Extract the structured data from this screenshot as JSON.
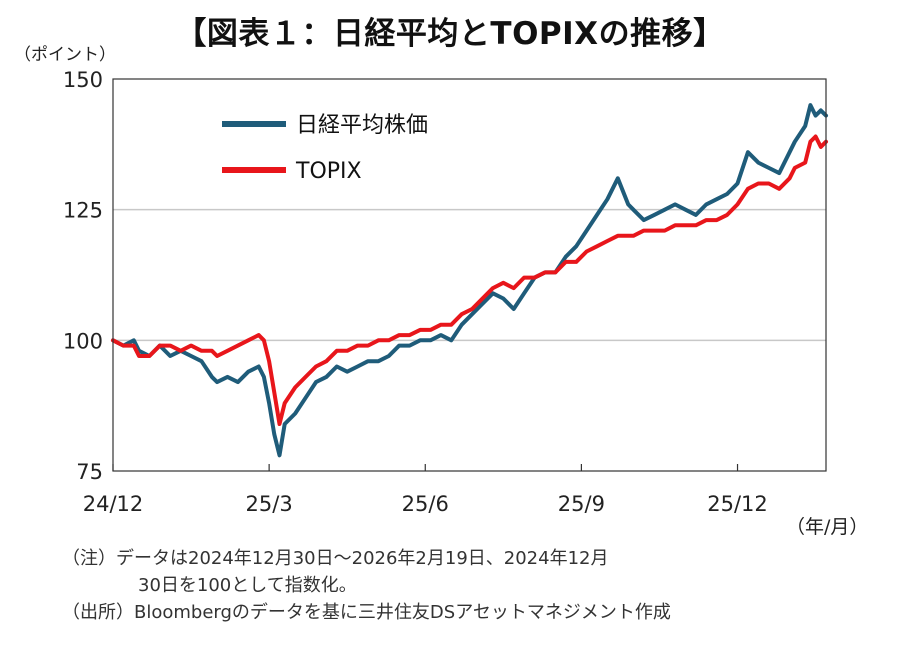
{
  "title": "【図表１：日経平均とTOPIXの推移】",
  "y_unit_label": "（ポイント）",
  "x_unit_label": "（年/月）",
  "notes": {
    "line1": "（注）データは2024年12月30日～2026年2月19日、2024年12月",
    "line2": "30日を100として指数化。",
    "line3": "（出所）Bloombergのデータを基に三井住友DSアセットマネジメント作成"
  },
  "chart_data": {
    "type": "line",
    "title": "日経平均とTOPIXの推移",
    "ylabel": "（ポイント）",
    "xlabel": "（年/月）",
    "ylim": [
      75,
      150
    ],
    "yticks": [
      75,
      100,
      125,
      150
    ],
    "xticks": [
      {
        "label": "24/12",
        "x": 0
      },
      {
        "label": "25/3",
        "x": 3
      },
      {
        "label": "25/6",
        "x": 6
      },
      {
        "label": "25/9",
        "x": 9
      },
      {
        "label": "25/12",
        "x": 12
      }
    ],
    "xlim": [
      0,
      13.7
    ],
    "grid": true,
    "legend_position": "top-left",
    "series": [
      {
        "name": "日経平均株価",
        "color": "#1f5c7a",
        "x": [
          0,
          0.2,
          0.4,
          0.5,
          0.7,
          0.9,
          1.1,
          1.3,
          1.5,
          1.7,
          1.9,
          2.0,
          2.2,
          2.4,
          2.6,
          2.8,
          2.9,
          3.0,
          3.1,
          3.2,
          3.3,
          3.5,
          3.7,
          3.9,
          4.1,
          4.3,
          4.5,
          4.7,
          4.9,
          5.1,
          5.3,
          5.5,
          5.7,
          5.9,
          6.1,
          6.3,
          6.5,
          6.7,
          6.9,
          7.1,
          7.3,
          7.5,
          7.7,
          7.9,
          8.1,
          8.3,
          8.5,
          8.7,
          8.9,
          9.1,
          9.3,
          9.5,
          9.7,
          9.9,
          10.0,
          10.2,
          10.4,
          10.6,
          10.8,
          11.0,
          11.2,
          11.4,
          11.6,
          11.8,
          12.0,
          12.2,
          12.4,
          12.6,
          12.8,
          13.0,
          13.1,
          13.3,
          13.4,
          13.5,
          13.6,
          13.7
        ],
        "values": [
          100,
          99,
          100,
          98,
          97,
          99,
          97,
          98,
          97,
          96,
          93,
          92,
          93,
          92,
          94,
          95,
          93,
          88,
          82,
          78,
          84,
          86,
          89,
          92,
          93,
          95,
          94,
          95,
          96,
          96,
          97,
          99,
          99,
          100,
          100,
          101,
          100,
          103,
          105,
          107,
          109,
          108,
          106,
          109,
          112,
          113,
          113,
          116,
          118,
          121,
          124,
          127,
          131,
          126,
          125,
          123,
          124,
          125,
          126,
          125,
          124,
          126,
          127,
          128,
          130,
          136,
          134,
          133,
          132,
          136,
          138,
          141,
          145,
          143,
          144,
          143
        ]
      },
      {
        "name": "TOPIX",
        "color": "#e8161b",
        "x": [
          0,
          0.2,
          0.4,
          0.5,
          0.7,
          0.9,
          1.1,
          1.3,
          1.5,
          1.7,
          1.9,
          2.0,
          2.2,
          2.4,
          2.6,
          2.8,
          2.9,
          3.0,
          3.1,
          3.2,
          3.3,
          3.5,
          3.7,
          3.9,
          4.1,
          4.3,
          4.5,
          4.7,
          4.9,
          5.1,
          5.3,
          5.5,
          5.7,
          5.9,
          6.1,
          6.3,
          6.5,
          6.7,
          6.9,
          7.1,
          7.3,
          7.5,
          7.7,
          7.9,
          8.1,
          8.3,
          8.5,
          8.7,
          8.9,
          9.1,
          9.3,
          9.5,
          9.7,
          9.9,
          10.0,
          10.2,
          10.4,
          10.6,
          10.8,
          11.0,
          11.2,
          11.4,
          11.6,
          11.8,
          12.0,
          12.2,
          12.4,
          12.6,
          12.8,
          13.0,
          13.1,
          13.3,
          13.4,
          13.5,
          13.6,
          13.7
        ],
        "values": [
          100,
          99,
          99,
          97,
          97,
          99,
          99,
          98,
          99,
          98,
          98,
          97,
          98,
          99,
          100,
          101,
          100,
          96,
          90,
          84,
          88,
          91,
          93,
          95,
          96,
          98,
          98,
          99,
          99,
          100,
          100,
          101,
          101,
          102,
          102,
          103,
          103,
          105,
          106,
          108,
          110,
          111,
          110,
          112,
          112,
          113,
          113,
          115,
          115,
          117,
          118,
          119,
          120,
          120,
          120,
          121,
          121,
          121,
          122,
          122,
          122,
          123,
          123,
          124,
          126,
          129,
          130,
          130,
          129,
          131,
          133,
          134,
          138,
          139,
          137,
          138
        ]
      }
    ]
  }
}
